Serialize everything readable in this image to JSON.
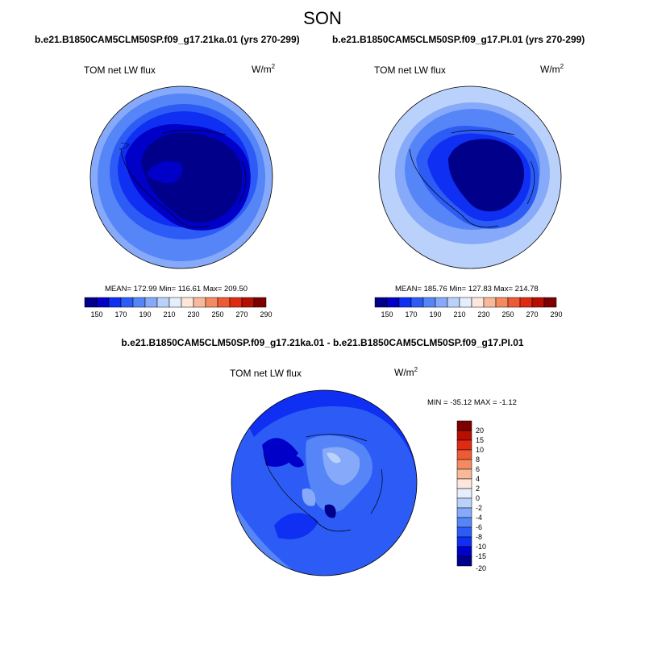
{
  "season": "SON",
  "panels": [
    {
      "case": "b.e21.B1850CAM5CLM50SP.f09_g17.21ka.01 (yrs 270-299)",
      "variable": "TOM net LW flux",
      "units": "W/m",
      "units_sup": "2",
      "stats": "MEAN= 172.99  Min= 116.61  Max= 209.50"
    },
    {
      "case": "b.e21.B1850CAM5CLM50SP.f09_g17.PI.01 (yrs 270-299)",
      "variable": "TOM net LW flux",
      "units": "W/m",
      "units_sup": "2",
      "stats": "MEAN= 185.76  Min= 127.83  Max= 214.78"
    }
  ],
  "difference": {
    "title": "b.e21.B1850CAM5CLM50SP.f09_g17.21ka.01 - b.e21.B1850CAM5CLM50SP.f09_g17.PI.01",
    "variable": "TOM net LW flux",
    "units": "W/m",
    "units_sup": "2",
    "stats": "MIN = -35.12 MAX =  -1.12"
  },
  "colorbar_abs": {
    "colors": [
      "#00008a",
      "#0000c8",
      "#0f2ff2",
      "#2c5cf5",
      "#5585f7",
      "#86aaf9",
      "#bad2fb",
      "#e4eefd",
      "#fde6da",
      "#f8b89a",
      "#f48a62",
      "#ee5a34",
      "#de2b12",
      "#b40f00",
      "#7d0000"
    ],
    "labels": [
      "150",
      "170",
      "190",
      "210",
      "230",
      "250",
      "270",
      "290"
    ]
  },
  "colorbar_diff": {
    "colors": [
      "#7d0000",
      "#b40f00",
      "#de2b12",
      "#ee5a34",
      "#f48a62",
      "#f8b89a",
      "#fde6da",
      "#e4eefd",
      "#bad2fb",
      "#86aaf9",
      "#5585f7",
      "#2c5cf5",
      "#0f2ff2",
      "#0000c8",
      "#00008a"
    ],
    "labels": [
      "20",
      "15",
      "10",
      "8",
      "6",
      "4",
      "2",
      "0",
      "-2",
      "-4",
      "-6",
      "-8",
      "-10",
      "-15",
      "-20"
    ]
  }
}
